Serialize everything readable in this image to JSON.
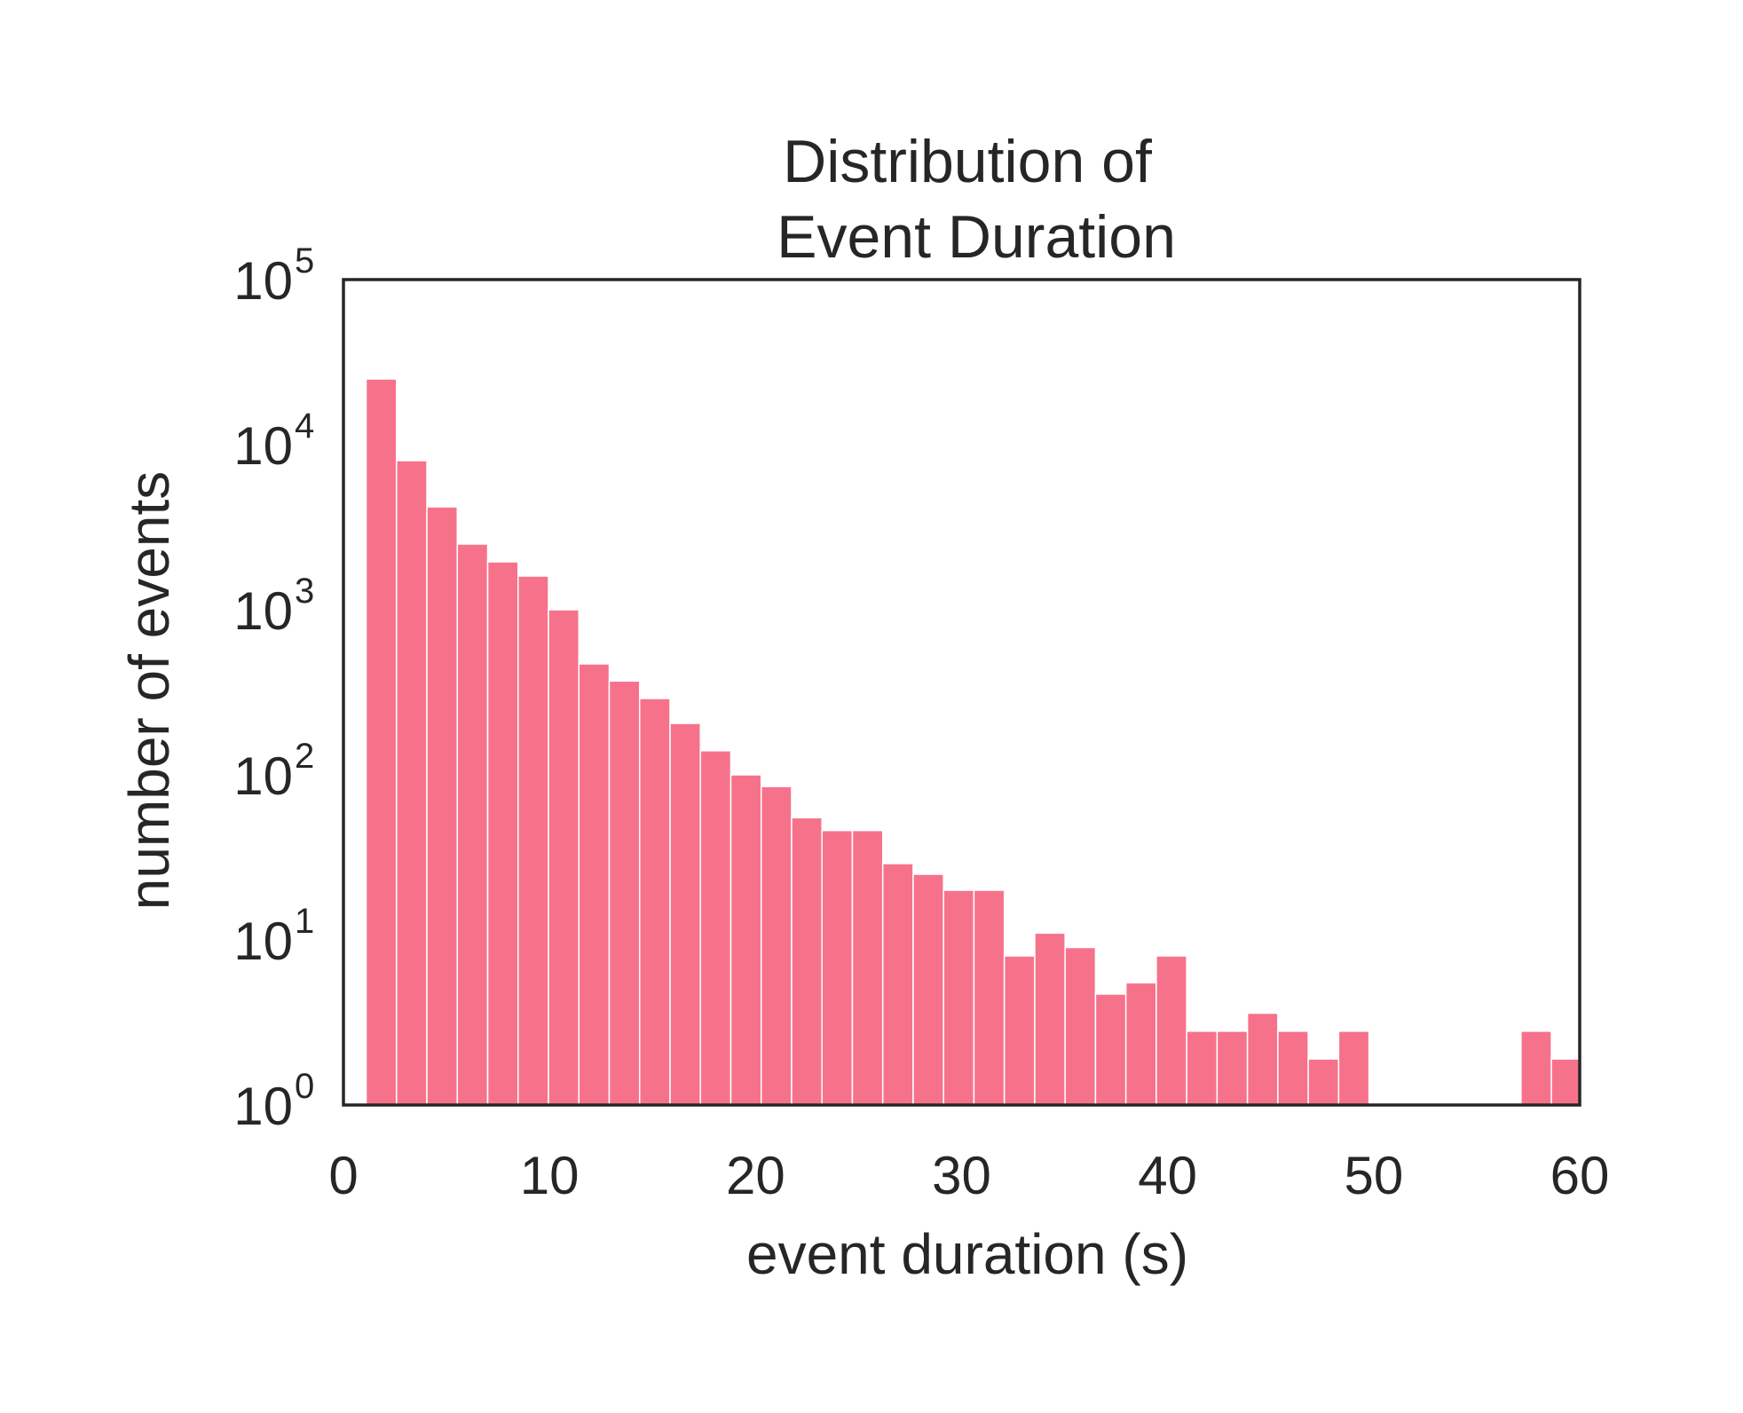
{
  "chart_data": {
    "type": "bar",
    "title_lines": [
      "Distribution of",
      "Event Duration"
    ],
    "xlabel": "event duration (s)",
    "ylabel": "number of events",
    "xlim": [
      0,
      60
    ],
    "y_scale": "log",
    "ylim": [
      1,
      100000
    ],
    "x_ticks": [
      0,
      10,
      20,
      30,
      40,
      50,
      60
    ],
    "x_tick_labels": [
      "0",
      "10",
      "20",
      "30",
      "40",
      "50",
      "60"
    ],
    "y_tick_labels": [
      {
        "base": "10",
        "exp": "0"
      },
      {
        "base": "10",
        "exp": "1"
      },
      {
        "base": "10",
        "exp": "2"
      },
      {
        "base": "10",
        "exp": "3"
      },
      {
        "base": "10",
        "exp": "4"
      },
      {
        "base": "10",
        "exp": "5"
      }
    ],
    "y_ticks": [
      1,
      10,
      100,
      1000,
      10000,
      100000
    ],
    "bin_width": 1.475,
    "bin_start": 1.1,
    "values": [
      25000,
      8000,
      4200,
      2500,
      1950,
      1600,
      1000,
      470,
      370,
      290,
      205,
      140,
      100,
      85,
      55,
      46,
      46,
      29,
      25,
      20,
      20,
      8,
      11,
      9,
      4.7,
      5.5,
      8,
      2.8,
      2.8,
      3.6,
      2.8,
      1.9,
      2.8,
      1,
      1,
      1,
      1,
      1,
      2.8,
      1.9
    ],
    "grid": false,
    "colors": {
      "bar": "#f6728b",
      "bar_edge": "#ffffff",
      "axis": "#262626",
      "text": "#262626"
    }
  }
}
